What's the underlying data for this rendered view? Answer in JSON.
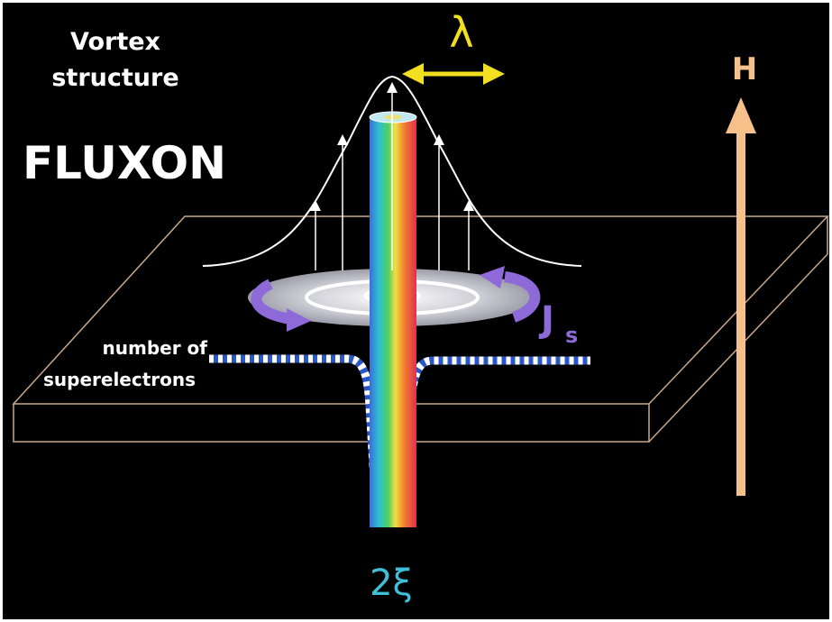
{
  "labels": {
    "title_line1": "Vortex",
    "title_line2": "structure",
    "fluxon": "FLUXON",
    "lambda": "λ",
    "field": "H",
    "current": "J",
    "current_sub": "s",
    "superelectrons_line1": "number of",
    "superelectrons_line2": "superelectrons",
    "coherence": "2ξ"
  }
}
